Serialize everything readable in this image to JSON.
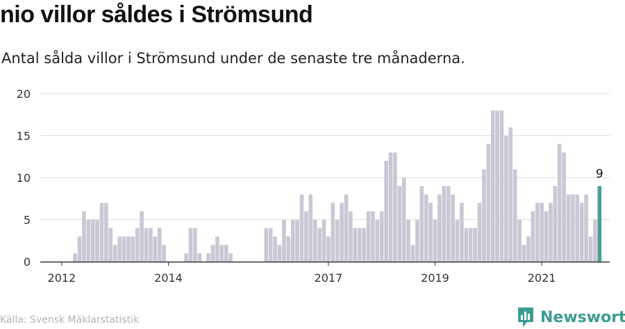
{
  "title": "nio villor såldes i Strömsund",
  "subtitle": "Antal sålda villor i Strömsund under de senaste tre månaderna.",
  "source": "Källa: Svensk Mäklarstatistik",
  "brand": {
    "name": "Newsworthy",
    "icon": "bar-chart-logo-icon",
    "color": "#3d9c91"
  },
  "colors": {
    "bar": "#c9c8d4",
    "highlight": "#4c9e93",
    "grid": "#dddddd",
    "axis": "#333333"
  },
  "chart_data": {
    "type": "bar",
    "title": "nio villor såldes i Strömsund",
    "subtitle": "Antal sålda villor i Strömsund under de senaste tre månaderna.",
    "xlabel": "",
    "ylabel": "",
    "ylim": [
      0,
      20
    ],
    "yticks": [
      "0",
      "5",
      "10",
      "15",
      "20"
    ],
    "xticks": [
      "2012",
      "2014",
      "2017",
      "2019",
      "2021"
    ],
    "grid": true,
    "start_month": "2011-09",
    "values": [
      0,
      0,
      0,
      0,
      0,
      0,
      0,
      1,
      3,
      6,
      5,
      5,
      5,
      7,
      7,
      4,
      2,
      3,
      3,
      3,
      3,
      4,
      6,
      4,
      4,
      3,
      4,
      2,
      0,
      0,
      0,
      0,
      1,
      4,
      4,
      1,
      0,
      1,
      2,
      3,
      2,
      2,
      1,
      0,
      0,
      0,
      0,
      0,
      0,
      0,
      4,
      4,
      3,
      2,
      5,
      3,
      5,
      5,
      8,
      6,
      8,
      5,
      4,
      5,
      3,
      7,
      5,
      7,
      8,
      6,
      4,
      4,
      4,
      6,
      6,
      5,
      6,
      12,
      13,
      13,
      9,
      10,
      5,
      2,
      5,
      9,
      8,
      7,
      5,
      8,
      9,
      9,
      8,
      5,
      7,
      4,
      4,
      4,
      7,
      11,
      14,
      18,
      18,
      18,
      15,
      16,
      11,
      5,
      2,
      3,
      6,
      7,
      7,
      6,
      7,
      9,
      14,
      13,
      8,
      8,
      8,
      7,
      8,
      3,
      5,
      9
    ],
    "highlight_last": true,
    "annotation": "9"
  }
}
